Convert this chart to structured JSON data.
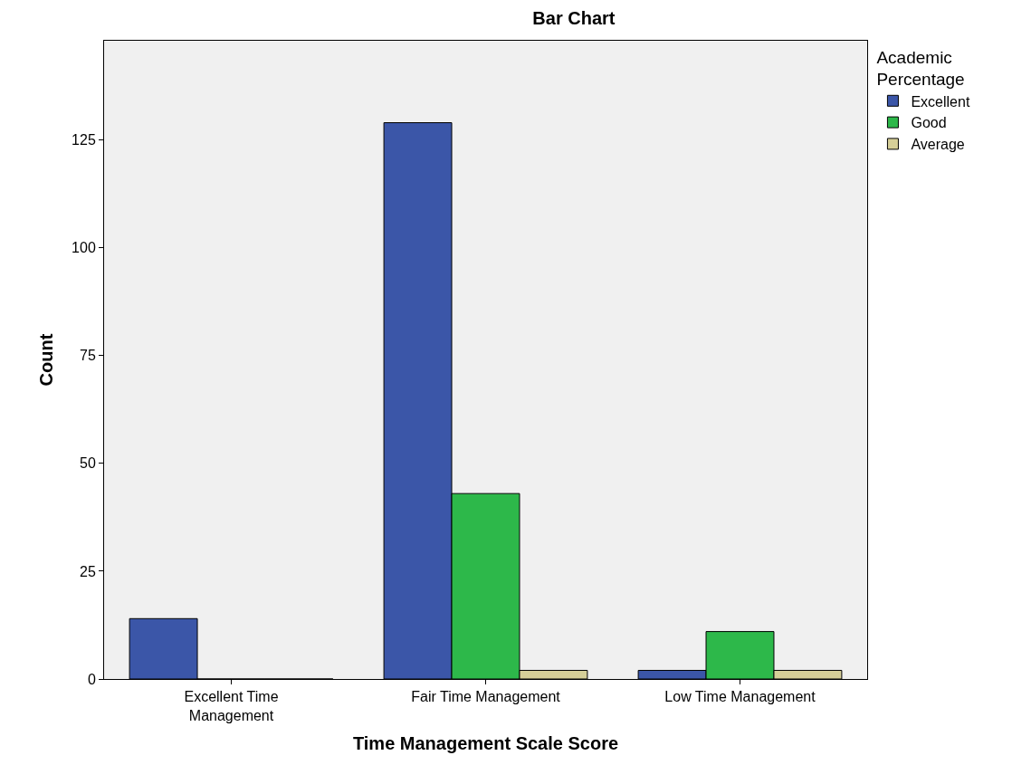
{
  "chart_data": {
    "type": "bar",
    "title": "Bar Chart",
    "xlabel": "Time Management Scale Score",
    "ylabel": "Count",
    "legend_title": "Academic Percentage",
    "categories": [
      "Excellent Time Management",
      "Fair Time Management",
      "Low Time Management"
    ],
    "series": [
      {
        "name": "Excellent",
        "color": "#3b56a8",
        "values": [
          14,
          129,
          2
        ]
      },
      {
        "name": "Good",
        "color": "#2db84a",
        "values": [
          0,
          43,
          11
        ]
      },
      {
        "name": "Average",
        "color": "#d6cf98",
        "values": [
          0,
          2,
          2
        ]
      }
    ],
    "ylim": [
      0,
      148
    ],
    "yticks": [
      0,
      25,
      50,
      75,
      100,
      125
    ],
    "grid": false,
    "legend": "top right"
  }
}
